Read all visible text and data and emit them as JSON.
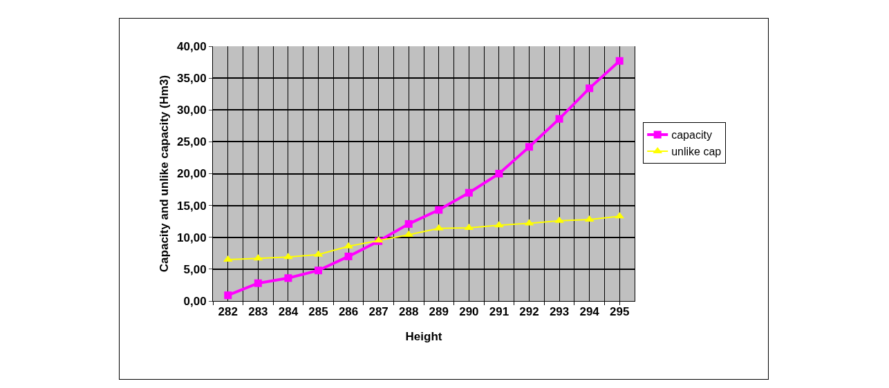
{
  "chart_data": {
    "type": "line",
    "xlabel": "Height",
    "ylabel": "Capacity and unlike capacity (Hm3)",
    "categories": [
      "282",
      "283",
      "284",
      "285",
      "286",
      "287",
      "288",
      "289",
      "290",
      "291",
      "292",
      "293",
      "294",
      "295"
    ],
    "series": [
      {
        "name": "capacity",
        "color": "#ff00ff",
        "marker": "square",
        "values": [
          0.9,
          2.8,
          3.6,
          4.8,
          7.0,
          9.4,
          12.1,
          14.3,
          17.0,
          20.0,
          24.2,
          28.6,
          33.4,
          37.7
        ]
      },
      {
        "name": "unlike cap",
        "color": "#ffff00",
        "marker": "triangle",
        "values": [
          6.5,
          6.7,
          6.9,
          7.3,
          8.6,
          9.5,
          10.4,
          11.4,
          11.5,
          11.9,
          12.2,
          12.6,
          12.8,
          13.3
        ]
      }
    ],
    "ylim": [
      0,
      40
    ],
    "yticks": [
      {
        "value": 0,
        "label": "0,00"
      },
      {
        "value": 5,
        "label": "5,00"
      },
      {
        "value": 10,
        "label": "10,00"
      },
      {
        "value": 15,
        "label": "15,00"
      },
      {
        "value": 20,
        "label": "20,00"
      },
      {
        "value": 25,
        "label": "25,00"
      },
      {
        "value": 30,
        "label": "30,00"
      },
      {
        "value": 35,
        "label": "35,00"
      },
      {
        "value": 40,
        "label": "40,00"
      }
    ],
    "grid": true,
    "legend": "right",
    "line_style": "solid"
  }
}
